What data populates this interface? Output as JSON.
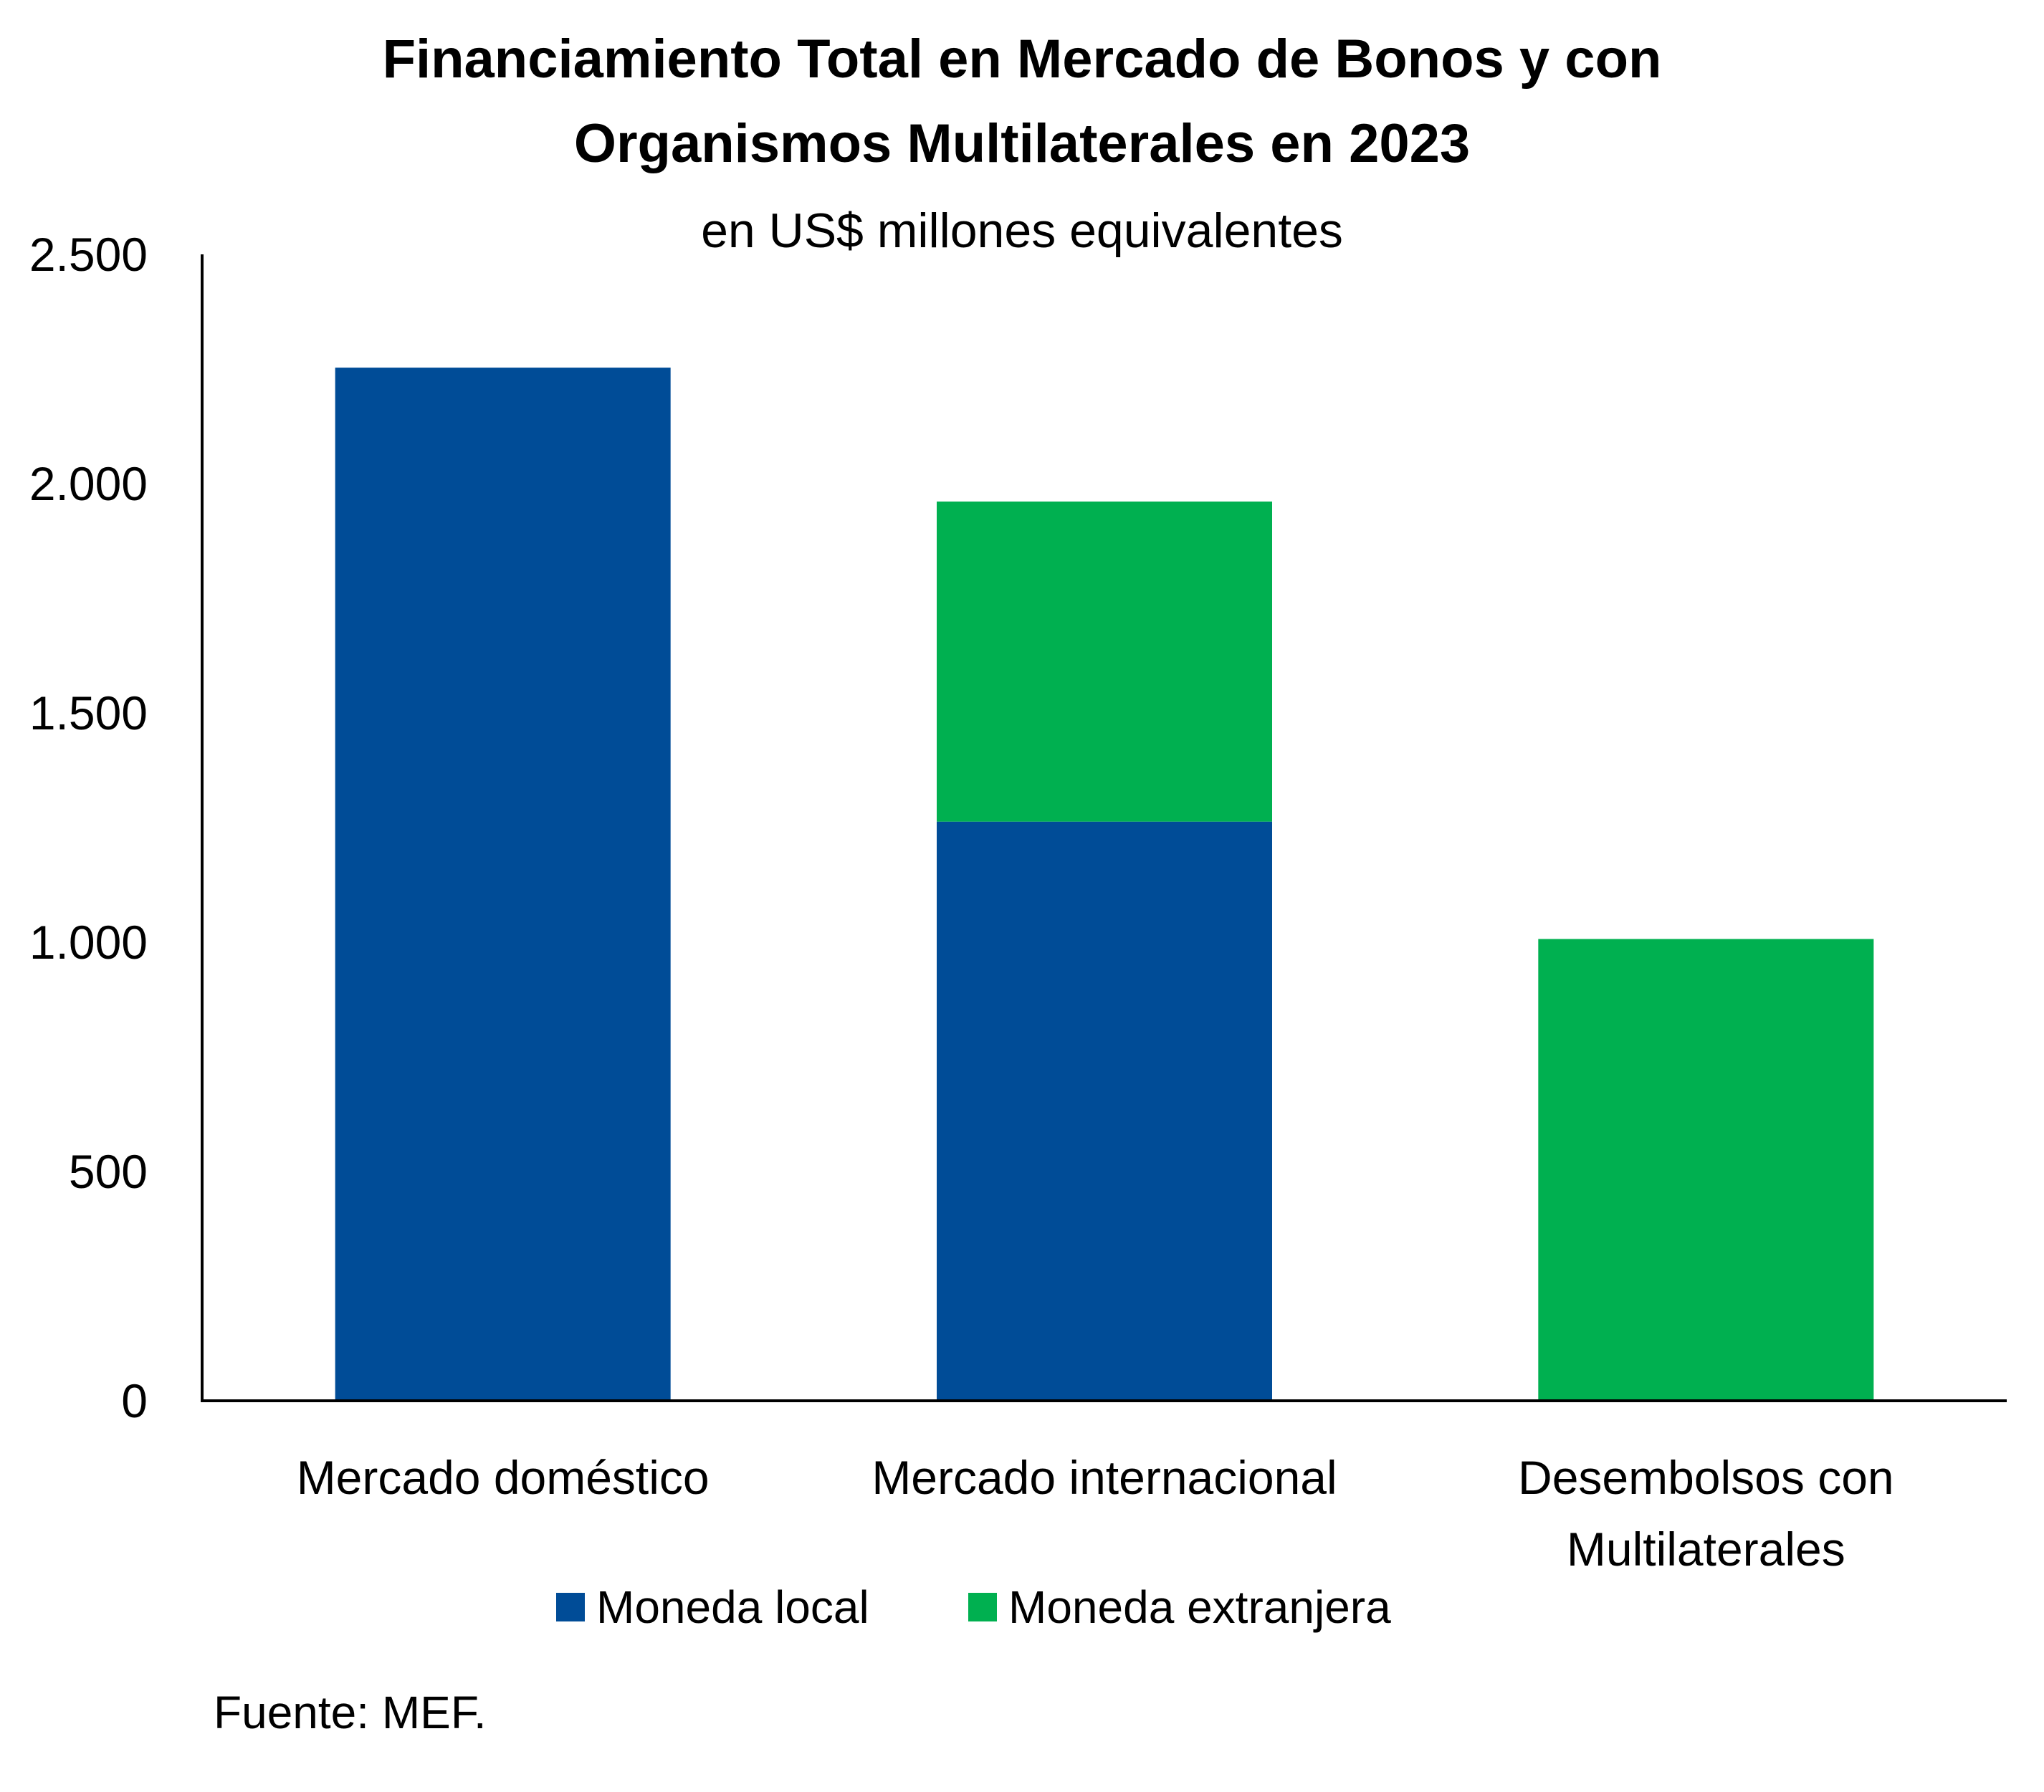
{
  "chart_data": {
    "type": "bar",
    "stacked": true,
    "title": "Financiamiento Total en Mercado de Bonos y con Organismos Multilaterales en 2023",
    "title_lines": [
      "Financiamiento Total en Mercado de Bonos y con",
      "Organismos Multilaterales en 2023"
    ],
    "subtitle": "en US$ millones equivalentes",
    "categories": [
      "Mercado doméstico",
      "Mercado internacional",
      "Desembolsos con Multilaterales"
    ],
    "category_lines": [
      [
        "Mercado doméstico"
      ],
      [
        "Mercado internacional"
      ],
      [
        "Desembolsos con",
        "Multilaterales"
      ]
    ],
    "series": [
      {
        "name": "Moneda local",
        "color": "#004C97",
        "values": [
          2253,
          1263,
          0
        ]
      },
      {
        "name": "Moneda extranjera",
        "color": "#00B050",
        "values": [
          0,
          698,
          1007
        ]
      }
    ],
    "ylim": [
      0,
      2500
    ],
    "yticks": [
      0,
      500,
      1000,
      1500,
      2000,
      2500
    ],
    "ytick_labels": [
      "0",
      "500",
      "1.000",
      "1.500",
      "2.000",
      "2.500"
    ],
    "xlabel": "",
    "ylabel": "",
    "grid": false,
    "legend_position": "bottom"
  },
  "source": "Fuente: MEF."
}
